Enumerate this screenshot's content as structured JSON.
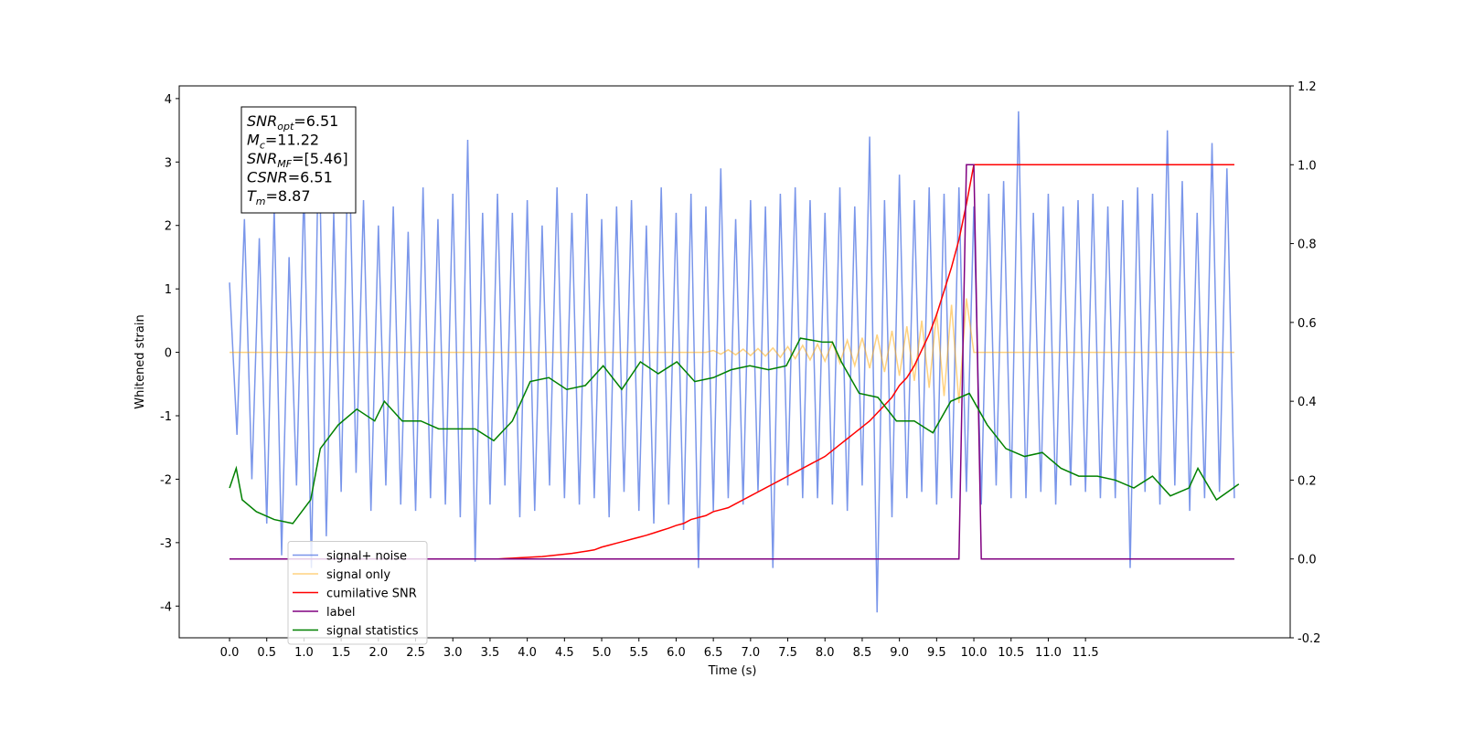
{
  "chart_data": {
    "type": "line",
    "xlabel": "Time (s)",
    "ylabel": "Whitened strain",
    "xlim": [
      -0.676,
      14.25
    ],
    "ylim": [
      -4.5,
      4.2
    ],
    "y2lim": [
      -0.2,
      1.2
    ],
    "xticks": [
      {
        "value": 0,
        "label": "0.0"
      },
      0.5,
      {
        "value": 1,
        "label": "1.0"
      },
      1.5,
      {
        "value": 2,
        "label": "2.0"
      },
      2.5,
      {
        "value": 3,
        "label": "3.0"
      },
      3.5,
      {
        "value": 4,
        "label": "4.0"
      },
      4.5,
      {
        "value": 5,
        "label": "5.0"
      },
      5.5,
      {
        "value": 6,
        "label": "6.0"
      },
      6.5,
      {
        "value": 7,
        "label": "7.0"
      },
      7.5,
      {
        "value": 8,
        "label": "8.0"
      },
      8.5,
      {
        "value": 9,
        "label": "9.0"
      },
      9.5,
      {
        "value": 10,
        "label": "10.0"
      },
      10.5,
      {
        "value": 11,
        "label": "11.0"
      },
      11.5
    ],
    "yticks": [
      -4,
      -3,
      -2,
      -1,
      0,
      1,
      2,
      3,
      4
    ],
    "y2ticks": [
      -0.2,
      {
        "value": 0,
        "label": "0.0"
      },
      0.2,
      0.4,
      0.6,
      0.8,
      {
        "value": 1,
        "label": "1.0"
      },
      1.2
    ],
    "legend_loc": "lower left",
    "annotation": [
      {
        "symbol": "SNR",
        "sub": "opt",
        "text": "=6.51"
      },
      {
        "symbol": "M",
        "sub": "c",
        "text": "=11.22"
      },
      {
        "symbol": "SNR",
        "sub": "MF",
        "text": "=[5.46]"
      },
      {
        "symbol": "CSNR",
        "text": "=6.51"
      },
      {
        "symbol": "T",
        "sub": "m",
        "text": "=8.87"
      }
    ],
    "x": [
      0,
      0.1,
      0.2,
      0.3,
      0.4,
      0.5,
      0.6,
      0.7,
      0.8,
      0.9,
      1,
      1.1,
      1.2,
      1.3,
      1.4,
      1.5,
      1.6,
      1.7,
      1.8,
      1.9,
      2,
      2.1,
      2.2,
      2.3,
      2.4,
      2.5,
      2.6,
      2.7,
      2.8,
      2.9,
      3,
      3.1,
      3.2,
      3.3,
      3.4,
      3.5,
      3.6,
      3.7,
      3.8,
      3.9,
      4,
      4.1,
      4.2,
      4.3,
      4.4,
      4.5,
      4.6,
      4.7,
      4.8,
      4.9,
      5,
      5.1,
      5.2,
      5.3,
      5.4,
      5.5,
      5.6,
      5.7,
      5.8,
      5.9,
      6,
      6.1,
      6.2,
      6.3,
      6.4,
      6.5,
      6.6,
      6.7,
      6.8,
      6.9,
      7,
      7.1,
      7.2,
      7.3,
      7.4,
      7.5,
      7.6,
      7.7,
      7.8,
      7.9,
      8,
      8.1,
      8.2,
      8.3,
      8.4,
      8.5,
      8.6,
      8.7,
      8.8,
      8.9,
      9,
      9.1,
      9.2,
      9.3,
      9.4,
      9.5,
      9.6,
      9.7,
      9.8,
      9.9,
      10,
      10.1,
      10.2,
      10.3,
      10.4,
      10.5,
      10.6,
      10.7,
      10.8,
      10.9,
      11,
      11.1,
      11.2,
      11.3,
      11.4,
      11.5,
      11.6,
      11.7,
      11.8,
      11.9,
      12,
      12.1,
      12.2,
      12.3,
      12.4,
      12.5,
      12.6,
      12.7,
      12.8,
      12.9,
      13,
      13.1,
      13.2,
      13.3,
      13.4,
      13.5
    ],
    "series": [
      {
        "name": "signal+ noise",
        "color": "#4169e1",
        "alpha": 0.7,
        "values": [
          1.1,
          -1.3,
          2.1,
          -2.0,
          1.8,
          -2.7,
          2.3,
          -3.2,
          1.5,
          -2.1,
          2.6,
          -3.4,
          3.6,
          -2.9,
          2.2,
          -2.2,
          3.7,
          -1.9,
          2.4,
          -2.5,
          2.0,
          -2.1,
          2.3,
          -2.4,
          1.9,
          -2.5,
          2.6,
          -2.3,
          2.1,
          -2.4,
          2.5,
          -2.6,
          3.35,
          -3.3,
          2.2,
          -2.4,
          2.5,
          -2.1,
          2.2,
          -2.6,
          2.4,
          -2.5,
          2.0,
          -2.1,
          2.6,
          -2.3,
          2.2,
          -2.4,
          2.5,
          -2.3,
          2.1,
          -2.6,
          2.3,
          -2.2,
          2.4,
          -2.5,
          2.0,
          -2.7,
          2.6,
          -2.4,
          2.2,
          -2.8,
          2.5,
          -3.4,
          2.3,
          -2.5,
          2.9,
          -2.3,
          2.1,
          -2.4,
          2.4,
          -2.2,
          2.3,
          -3.4,
          2.5,
          -2.1,
          2.6,
          -2.3,
          2.4,
          -2.3,
          2.2,
          -2.4,
          2.6,
          -2.5,
          2.3,
          -2.1,
          3.4,
          -4.1,
          2.4,
          -2.6,
          2.8,
          -2.3,
          2.4,
          -2.2,
          2.6,
          -2.4,
          2.5,
          -2.3,
          2.6,
          -2.2,
          2.3,
          -2.4,
          2.5,
          -2.1,
          2.7,
          -2.3,
          3.8,
          -2.3,
          2.2,
          -2.2,
          2.5,
          -2.4,
          2.3,
          -2.1,
          2.4,
          -2.2,
          2.5,
          -2.3,
          2.3,
          -2.3,
          2.4,
          -3.4,
          2.6,
          -2.2,
          2.5,
          -2.4,
          3.5,
          -2.1,
          2.7,
          -2.5,
          2.2,
          -2.3,
          3.3,
          -2.2,
          2.9,
          -2.3
        ]
      },
      {
        "name": "signal only",
        "color": "#ffa500",
        "alpha": 0.5,
        "values": [
          0,
          0,
          0,
          0,
          0,
          0,
          0,
          0,
          0,
          0,
          0,
          0,
          0,
          0,
          0,
          0,
          0,
          0,
          0,
          0,
          0,
          0,
          0,
          0,
          0,
          0,
          0,
          0,
          0,
          0,
          0,
          0,
          0,
          0,
          0,
          0,
          0,
          0,
          0,
          0,
          0,
          0,
          0,
          0,
          0,
          0,
          0,
          0,
          0,
          0,
          0,
          0,
          0,
          0,
          0,
          0,
          0,
          0,
          0,
          0,
          0,
          0,
          0,
          0,
          0,
          0.03,
          -0.03,
          0.04,
          -0.04,
          0.05,
          -0.05,
          0.06,
          -0.06,
          0.07,
          -0.08,
          0.09,
          -0.1,
          0.11,
          -0.12,
          0.13,
          -0.14,
          0.16,
          -0.17,
          0.19,
          -0.21,
          0.23,
          -0.25,
          0.28,
          -0.31,
          0.34,
          -0.37,
          0.41,
          -0.45,
          0.5,
          -0.56,
          0.62,
          -0.69,
          0.75,
          -0.8,
          0.85,
          0,
          0,
          0,
          0,
          0,
          0,
          0,
          0,
          0,
          0,
          0,
          0,
          0,
          0,
          0,
          0,
          0,
          0,
          0,
          0,
          0,
          0,
          0,
          0,
          0,
          0,
          0,
          0,
          0,
          0,
          0,
          0,
          0,
          0,
          0,
          0
        ]
      },
      {
        "name": "cumilative SNR",
        "color": "#ff0000",
        "axis": "y2",
        "values": [
          0,
          0,
          0,
          0,
          0,
          0,
          0,
          0,
          0,
          0,
          0,
          0,
          0,
          0,
          0,
          0,
          0,
          0,
          0,
          0,
          0,
          0,
          0,
          0,
          0,
          0,
          0,
          0,
          0,
          0,
          0,
          0,
          0,
          0,
          0,
          0,
          0,
          0.001,
          0.002,
          0.003,
          0.004,
          0.005,
          0.006,
          0.008,
          0.01,
          0.012,
          0.014,
          0.017,
          0.02,
          0.023,
          0.03,
          0.035,
          0.04,
          0.045,
          0.05,
          0.055,
          0.06,
          0.066,
          0.072,
          0.078,
          0.085,
          0.09,
          0.1,
          0.105,
          0.11,
          0.12,
          0.125,
          0.13,
          0.14,
          0.15,
          0.16,
          0.17,
          0.18,
          0.19,
          0.2,
          0.21,
          0.22,
          0.23,
          0.24,
          0.25,
          0.26,
          0.275,
          0.29,
          0.305,
          0.32,
          0.335,
          0.35,
          0.37,
          0.39,
          0.41,
          0.44,
          0.46,
          0.49,
          0.53,
          0.57,
          0.62,
          0.68,
          0.74,
          0.81,
          0.9,
          1,
          1,
          1,
          1,
          1,
          1,
          1,
          1,
          1,
          1,
          1,
          1,
          1,
          1,
          1,
          1,
          1,
          1,
          1,
          1,
          1,
          1,
          1,
          1,
          1,
          1,
          1,
          1,
          1,
          1,
          1,
          1,
          1,
          1,
          1,
          1
        ]
      },
      {
        "name": "label",
        "color": "#800080",
        "axis": "y2",
        "values": [
          0,
          0,
          0,
          0,
          0,
          0,
          0,
          0,
          0,
          0,
          0,
          0,
          0,
          0,
          0,
          0,
          0,
          0,
          0,
          0,
          0,
          0,
          0,
          0,
          0,
          0,
          0,
          0,
          0,
          0,
          0,
          0,
          0,
          0,
          0,
          0,
          0,
          0,
          0,
          0,
          0,
          0,
          0,
          0,
          0,
          0,
          0,
          0,
          0,
          0,
          0,
          0,
          0,
          0,
          0,
          0,
          0,
          0,
          0,
          0,
          0,
          0,
          0,
          0,
          0,
          0,
          0,
          0,
          0,
          0,
          0,
          0,
          0,
          0,
          0,
          0,
          0,
          0,
          0,
          0,
          0,
          0,
          0,
          0,
          0,
          0,
          0,
          0,
          0,
          0,
          0,
          0,
          0,
          0,
          0,
          0,
          0,
          0,
          0,
          1,
          1,
          0,
          0,
          0,
          0,
          0,
          0,
          0,
          0,
          0,
          0,
          0,
          0,
          0,
          0,
          0,
          0,
          0,
          0,
          0,
          0,
          0,
          0,
          0,
          0,
          0,
          0,
          0,
          0,
          0,
          0,
          0,
          0,
          0,
          0,
          0
        ]
      },
      {
        "name": "signal statistics",
        "color": "#008000",
        "axis": "y2",
        "x": [
          0,
          0.09,
          0.17,
          0.36,
          0.6,
          0.85,
          1.09,
          1.22,
          1.46,
          1.71,
          1.95,
          2.08,
          2.32,
          2.57,
          2.81,
          3.06,
          3.3,
          3.55,
          3.8,
          4.04,
          4.29,
          4.53,
          4.78,
          5.02,
          5.27,
          5.52,
          5.76,
          6.01,
          6.25,
          6.5,
          6.74,
          6.99,
          7.24,
          7.48,
          7.67,
          7.97,
          8.1,
          8.22,
          8.46,
          8.71,
          8.96,
          9.2,
          9.45,
          9.69,
          9.94,
          10.18,
          10.43,
          10.68,
          10.92,
          11.17,
          11.41,
          11.66,
          11.9,
          12.15,
          12.4,
          12.64,
          12.89,
          13.01,
          13.26,
          13.56
        ],
        "values": [
          0.18,
          0.23,
          0.15,
          0.12,
          0.1,
          0.09,
          0.15,
          0.28,
          0.34,
          0.38,
          0.35,
          0.4,
          0.35,
          0.35,
          0.33,
          0.33,
          0.33,
          0.3,
          0.35,
          0.45,
          0.46,
          0.43,
          0.44,
          0.49,
          0.43,
          0.5,
          0.47,
          0.5,
          0.45,
          0.46,
          0.48,
          0.49,
          0.48,
          0.49,
          0.56,
          0.55,
          0.55,
          0.5,
          0.42,
          0.41,
          0.35,
          0.35,
          0.32,
          0.4,
          0.42,
          0.34,
          0.28,
          0.26,
          0.27,
          0.23,
          0.21,
          0.21,
          0.2,
          0.18,
          0.21,
          0.16,
          0.18,
          0.23,
          0.15,
          0.19
        ]
      }
    ]
  }
}
